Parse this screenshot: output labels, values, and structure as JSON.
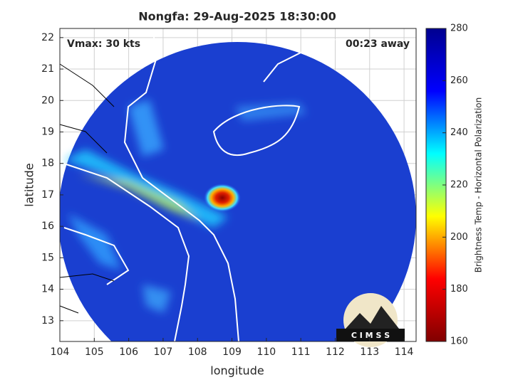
{
  "chart_data": {
    "type": "map",
    "title": "Nongfa: 29-Aug-2025 18:30:00",
    "xlabel": "longitude",
    "ylabel": "latitude",
    "xlim": [
      104,
      114.35
    ],
    "ylim": [
      12.34,
      22.29
    ],
    "xticks": [
      104,
      105,
      106,
      107,
      108,
      109,
      110,
      111,
      112,
      113,
      114
    ],
    "yticks": [
      13,
      14,
      15,
      16,
      17,
      18,
      19,
      20,
      21,
      22
    ],
    "grid": true,
    "annotations": [
      "Vmax: 30 kts",
      "00:23 away"
    ],
    "logo": "C I M S S",
    "colorbar": {
      "label": "Brightness Temp - Horizontal Polarization",
      "lim": [
        160,
        280
      ],
      "ticks": [
        160,
        180,
        200,
        220,
        240,
        260,
        280
      ],
      "colormap": [
        "#800000",
        "#ff0000",
        "#ffff00",
        "#00ffff",
        "#0000ff",
        "#00008f"
      ]
    }
  }
}
